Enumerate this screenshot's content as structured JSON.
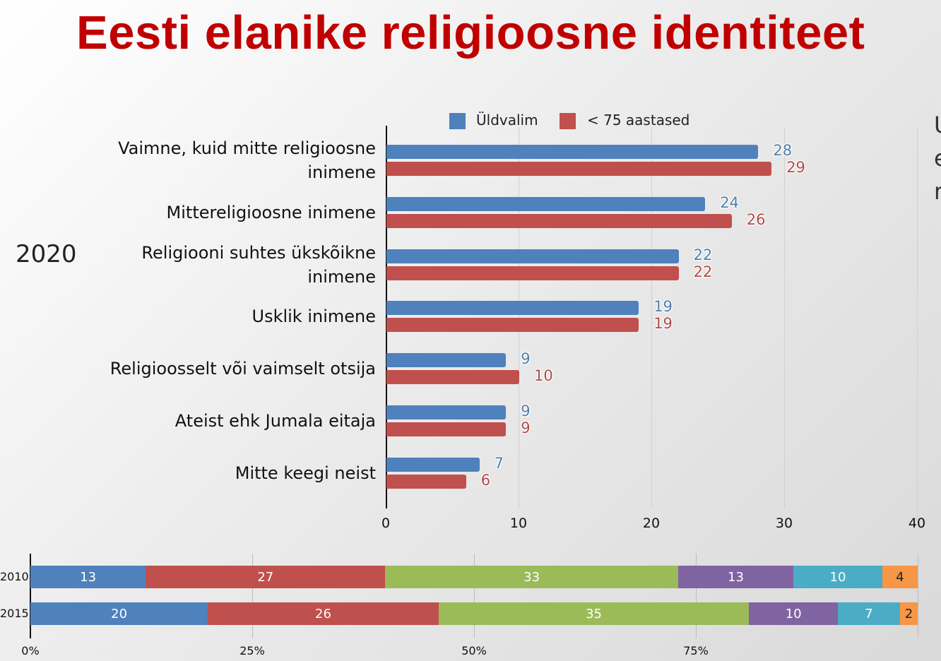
{
  "title": "Eesti elanike religioosne identiteet",
  "edge_text": [
    "U",
    "e",
    "r"
  ],
  "chart_data": [
    {
      "type": "bar",
      "orientation": "horizontal",
      "title": "2020",
      "categories": [
        "Vaimne, kuid mitte religioosne\ninimene",
        "Mittereligioosne inimene",
        "Religiooni suhtes ükskõikne\ninimene",
        "Usklik inimene",
        "Religioosselt või vaimselt otsija",
        "Ateist ehk Jumala eitaja",
        "Mitte keegi neist"
      ],
      "series": [
        {
          "name": "Üldvalim",
          "color": "#4f81bd",
          "label_color": "#4f7fa8",
          "values": [
            28,
            24,
            22,
            19,
            9,
            9,
            7
          ]
        },
        {
          "name": "< 75 aastased",
          "color": "#c0504d",
          "label_color": "#b04a47",
          "values": [
            29,
            26,
            22,
            19,
            10,
            9,
            6
          ]
        }
      ],
      "xlim": [
        0,
        40
      ],
      "xticks": [
        "0",
        "10",
        "20",
        "30",
        "40"
      ],
      "legend": "top",
      "grid": true
    },
    {
      "type": "bar",
      "orientation": "horizontal",
      "stacked": true,
      "categories": [
        "2010",
        "2015"
      ],
      "colors": [
        "#4f81bd",
        "#c0504d",
        "#9bbb59",
        "#8064a2",
        "#4bacc6",
        "#f79646"
      ],
      "series_values": [
        [
          13,
          27,
          33,
          13,
          10,
          4
        ],
        [
          20,
          26,
          35,
          10,
          7,
          2
        ]
      ],
      "xlim": [
        0,
        100
      ],
      "xticks": [
        "0%",
        "25%",
        "50%",
        "75%"
      ]
    }
  ]
}
